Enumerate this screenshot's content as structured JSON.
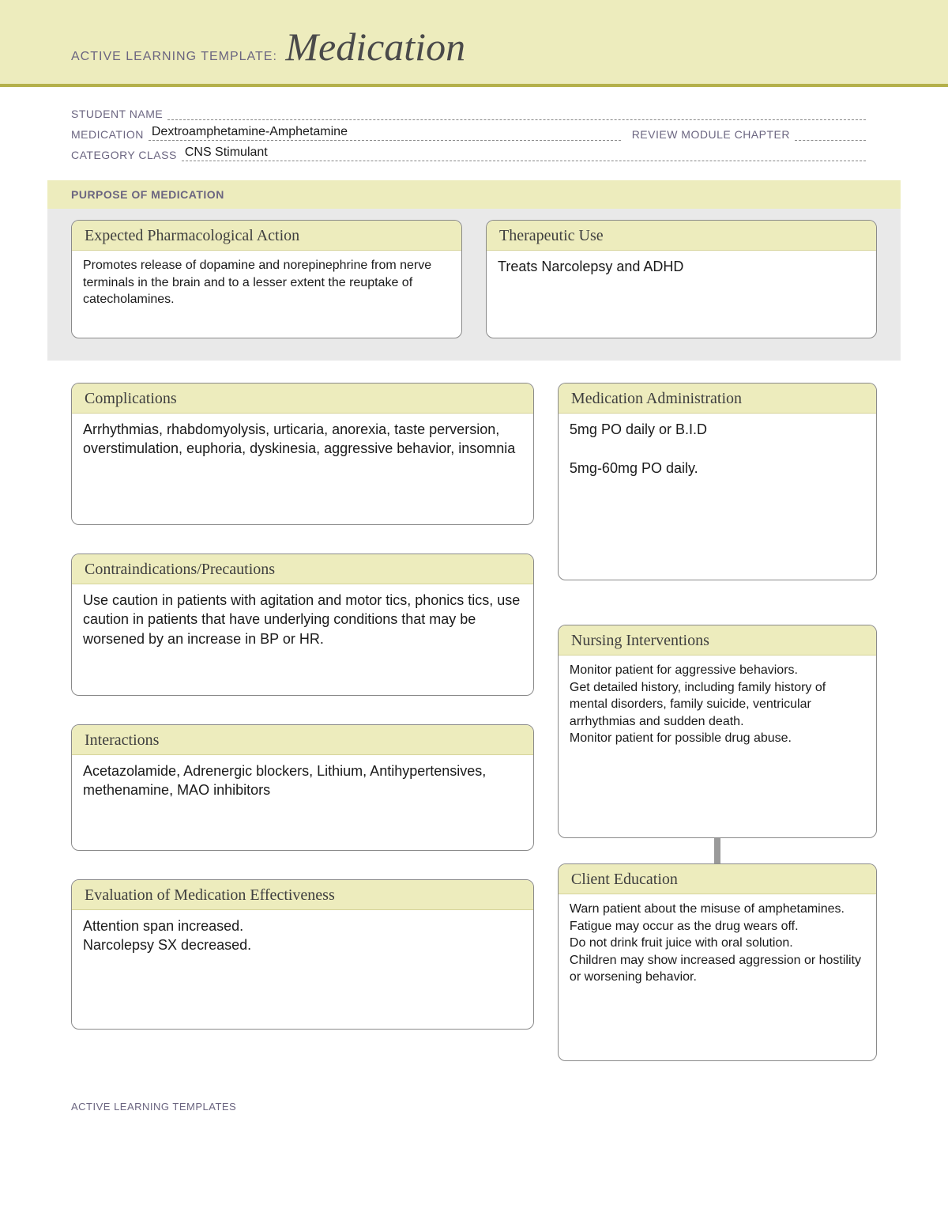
{
  "banner": {
    "prefix": "ACTIVE LEARNING TEMPLATE:",
    "title": "Medication"
  },
  "meta": {
    "student_name_label": "STUDENT NAME",
    "student_name_value": "",
    "medication_label": "MEDICATION",
    "medication_value": "Dextroamphetamine-Amphetamine",
    "review_label": "REVIEW MODULE CHAPTER",
    "review_value": "",
    "category_label": "CATEGORY CLASS",
    "category_value": "CNS Stimulant"
  },
  "purpose": {
    "section_label": "PURPOSE OF MEDICATION",
    "expected": {
      "title": "Expected Pharmacological Action",
      "body": "Promotes release of dopamine and norepinephrine from nerve terminals in the brain and to a lesser extent the reuptake of catecholamines."
    },
    "therapeutic": {
      "title": "Therapeutic Use",
      "body": "Treats Narcolepsy and ADHD"
    }
  },
  "cards": {
    "complications": {
      "title": "Complications",
      "body": "Arrhythmias, rhabdomyolysis, urticaria, anorexia, taste perversion, overstimulation, euphoria, dyskinesia, aggressive behavior, insomnia"
    },
    "contra": {
      "title": "Contraindications/Precautions",
      "body": "Use caution in patients with agitation and motor tics, phonics tics, use caution in patients that have underlying conditions that may be worsened by an increase in BP or HR."
    },
    "interactions": {
      "title": "Interactions",
      "body": "Acetazolamide, Adrenergic blockers, Lithium, Antihypertensives, methenamine, MAO inhibitors"
    },
    "eval": {
      "title": "Evaluation of Medication Effectiveness",
      "body": "Attention span increased.\nNarcolepsy SX decreased."
    },
    "admin": {
      "title": "Medication Administration",
      "body": "5mg PO daily or B.I.D\n\n5mg-60mg PO daily."
    },
    "nursing": {
      "title": "Nursing Interventions",
      "body": "Monitor patient for aggressive behaviors.\nGet detailed history, including family history of mental disorders, family suicide, ventricular arrhythmias and sudden death.\nMonitor patient for possible drug abuse."
    },
    "client": {
      "title": "Client Education",
      "body": "Warn patient about the misuse of amphetamines.\nFatigue may occur as the drug wears off.\nDo not drink fruit juice with oral solution.\nChildren may show increased aggression or hostility or worsening behavior."
    }
  },
  "footer": "ACTIVE LEARNING TEMPLATES",
  "colors": {
    "banner_bg": "#edecbd",
    "banner_rule": "#b4b04a",
    "label_text": "#6b6580",
    "card_border": "#8a8a8a",
    "body_text": "#1a1a1a",
    "grey_panel": "#e9e9e9"
  }
}
